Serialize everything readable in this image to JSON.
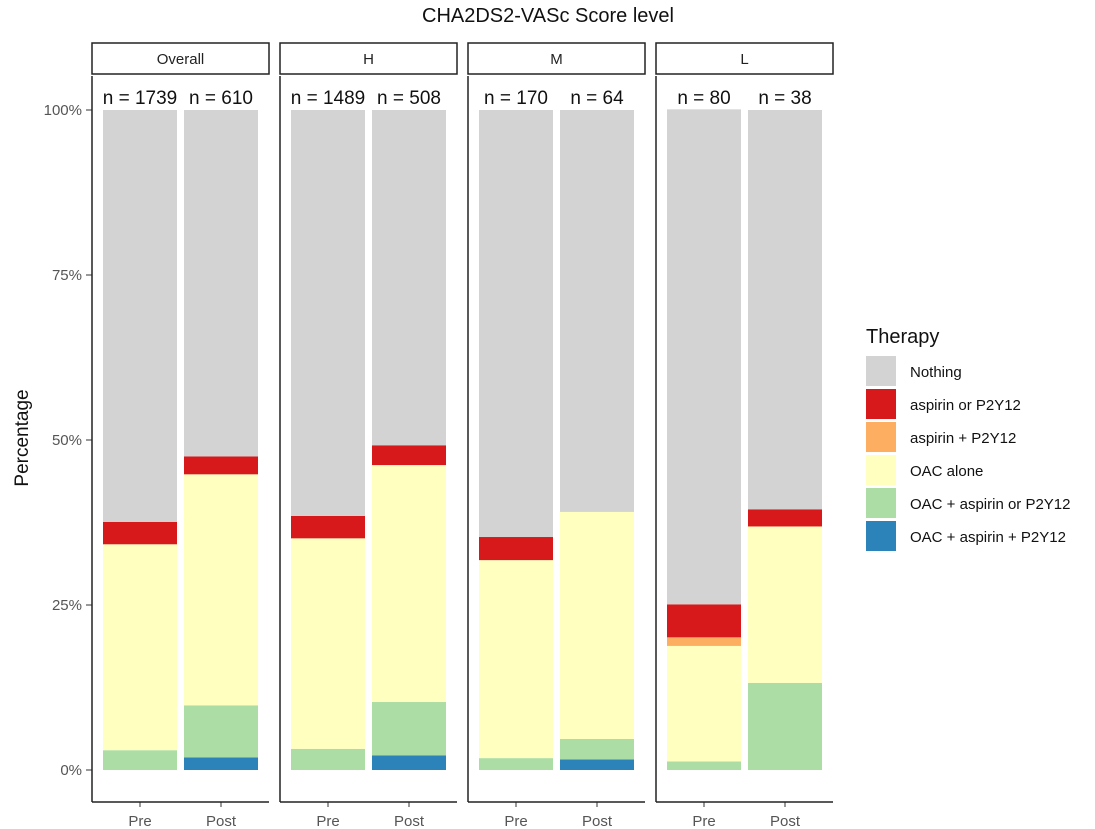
{
  "chart_data": {
    "type": "bar",
    "stacked": true,
    "title": "CHA2DS2-VASc Score level",
    "ylabel": "Percentage",
    "xlabel": "",
    "ylim": [
      0,
      100
    ],
    "yticks": [
      "0%",
      "25%",
      "50%",
      "75%",
      "100%"
    ],
    "ytick_values": [
      0,
      25,
      50,
      75,
      100
    ],
    "categories": [
      "Pre",
      "Post"
    ],
    "legend": {
      "title": "Therapy",
      "placement": "right",
      "entries": [
        {
          "name": "Nothing",
          "color": "#d3d3d3"
        },
        {
          "name": "aspirin or P2Y12",
          "color": "#d7191c"
        },
        {
          "name": "aspirin + P2Y12",
          "color": "#fdae61"
        },
        {
          "name": "OAC alone",
          "color": "#ffffbf"
        },
        {
          "name": "OAC + aspirin or P2Y12",
          "color": "#abdda4"
        },
        {
          "name": "OAC + aspirin + P2Y12",
          "color": "#2b83ba"
        }
      ]
    },
    "panels": [
      {
        "label": "Overall",
        "bars": [
          {
            "x": "Pre",
            "n": "n = 1739",
            "values": {
              "OAC + aspirin + P2Y12": 0.0,
              "OAC + aspirin or P2Y12": 3.0,
              "OAC alone": 31.2,
              "aspirin + P2Y12": 0.0,
              "aspirin or P2Y12": 3.4,
              "Nothing": 62.4
            }
          },
          {
            "x": "Post",
            "n": "n = 610",
            "values": {
              "OAC + aspirin + P2Y12": 1.9,
              "OAC + aspirin or P2Y12": 7.9,
              "OAC alone": 35.0,
              "aspirin + P2Y12": 0.0,
              "aspirin or P2Y12": 2.7,
              "Nothing": 52.5
            }
          }
        ]
      },
      {
        "label": "H",
        "bars": [
          {
            "x": "Pre",
            "n": "n = 1489",
            "values": {
              "OAC + aspirin + P2Y12": 0.0,
              "OAC + aspirin or P2Y12": 3.2,
              "OAC alone": 31.9,
              "aspirin + P2Y12": 0.0,
              "aspirin or P2Y12": 3.4,
              "Nothing": 61.5
            }
          },
          {
            "x": "Post",
            "n": "n = 508",
            "values": {
              "OAC + aspirin + P2Y12": 2.2,
              "OAC + aspirin or P2Y12": 8.1,
              "OAC alone": 35.9,
              "aspirin + P2Y12": 0.0,
              "aspirin or P2Y12": 3.0,
              "Nothing": 50.8
            }
          }
        ]
      },
      {
        "label": "M",
        "bars": [
          {
            "x": "Pre",
            "n": "n = 170",
            "values": {
              "OAC + aspirin + P2Y12": 0.0,
              "OAC + aspirin or P2Y12": 1.8,
              "OAC alone": 30.0,
              "aspirin + P2Y12": 0.0,
              "aspirin or P2Y12": 3.5,
              "Nothing": 64.7
            }
          },
          {
            "x": "Post",
            "n": "n = 64",
            "values": {
              "OAC + aspirin + P2Y12": 1.6,
              "OAC + aspirin or P2Y12": 3.1,
              "OAC alone": 34.4,
              "aspirin + P2Y12": 0.0,
              "aspirin or P2Y12": 0.0,
              "Nothing": 60.9
            }
          }
        ]
      },
      {
        "label": "L",
        "bars": [
          {
            "x": "Pre",
            "n": "n = 80",
            "values": {
              "OAC + aspirin + P2Y12": 0.0,
              "OAC + aspirin or P2Y12": 1.3,
              "OAC alone": 17.5,
              "aspirin + P2Y12": 1.3,
              "aspirin or P2Y12": 5.0,
              "Nothing": 75.0
            }
          },
          {
            "x": "Post",
            "n": "n = 38",
            "values": {
              "OAC + aspirin + P2Y12": 0.0,
              "OAC + aspirin or P2Y12": 13.2,
              "OAC alone": 23.7,
              "aspirin + P2Y12": 0.0,
              "aspirin or P2Y12": 2.6,
              "Nothing": 60.5
            }
          }
        ]
      }
    ]
  }
}
